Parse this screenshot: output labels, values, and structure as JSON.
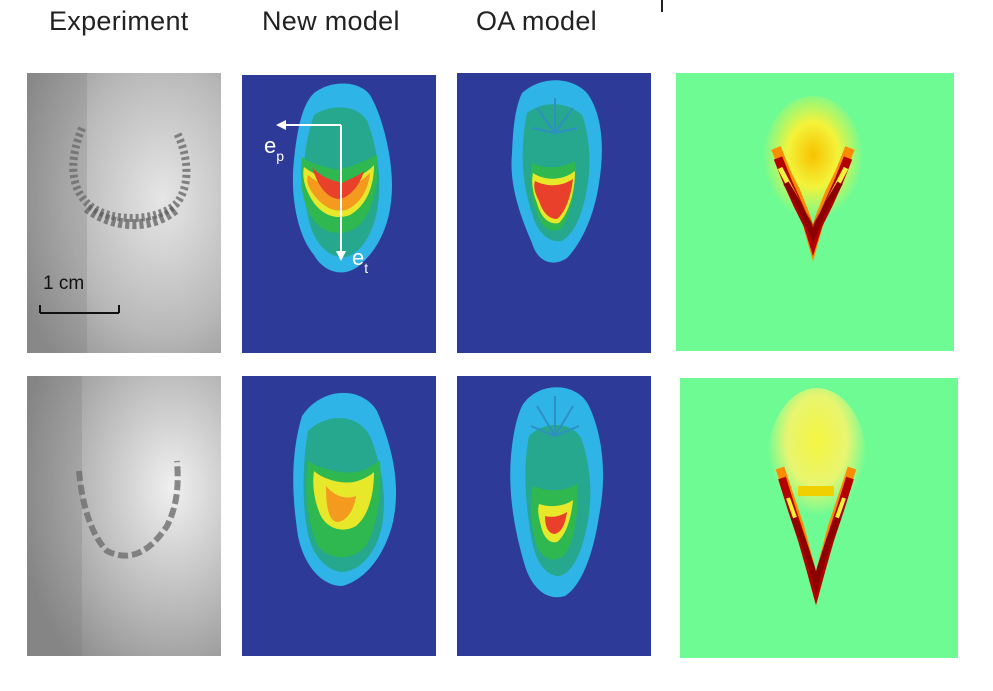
{
  "headers": {
    "experiment": "Experiment",
    "new_model": "New model",
    "oa_model": "OA model"
  },
  "scale_bar": {
    "label": "1 cm"
  },
  "axis_labels": {
    "ep": "e",
    "ep_sub": "p",
    "et": "e",
    "et_sub": "t"
  },
  "colors": {
    "sim_background": "#2e3a97",
    "level_light_blue": "#2fb4e8",
    "level_teal": "#26a88e",
    "level_green": "#2eb84f",
    "level_yellow": "#e8e82a",
    "level_orange": "#f39a1f",
    "level_red": "#e8402a",
    "heat_background": "#6ffb94",
    "heat_dark_red": "#8b0000"
  }
}
